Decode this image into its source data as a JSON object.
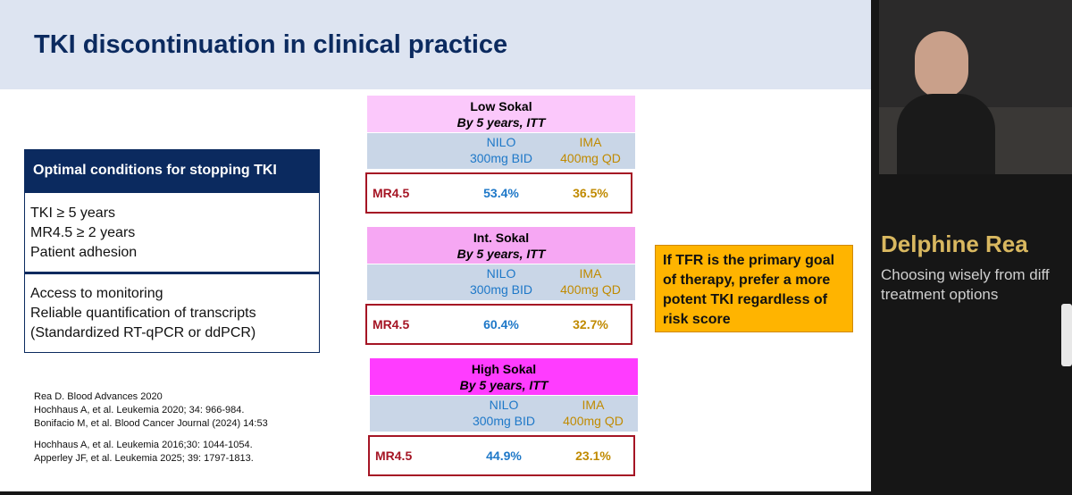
{
  "slide": {
    "title": "TKI discontinuation in clinical practice",
    "conditions": {
      "header": "Optimal conditions for stopping TKI",
      "groups": [
        [
          "TKI ≥ 5 years",
          "MR4.5 ≥ 2 years",
          "Patient adhesion"
        ],
        [
          "Access to monitoring",
          "Reliable quantification of transcripts",
          "(Standardized RT-qPCR or ddPCR)"
        ]
      ]
    },
    "tables": [
      {
        "title": "Low Sokal",
        "subtitle": "By 5 years, ITT",
        "columns": [
          [
            "NILO",
            "300mg BID"
          ],
          [
            "IMA",
            "400mg QD"
          ]
        ],
        "row_label": "MR4.5",
        "values": [
          "53.4%",
          "36.5%"
        ]
      },
      {
        "title": "Int. Sokal",
        "subtitle": "By 5 years, ITT",
        "columns": [
          [
            "NILO",
            "300mg BID"
          ],
          [
            "IMA",
            "400mg QD"
          ]
        ],
        "row_label": "MR4.5",
        "values": [
          "60.4%",
          "32.7%"
        ]
      },
      {
        "title": "High Sokal",
        "subtitle": "By 5 years, ITT",
        "columns": [
          [
            "NILO",
            "300mg BID"
          ],
          [
            "IMA",
            "400mg QD"
          ]
        ],
        "row_label": "MR4.5",
        "values": [
          "44.9%",
          "23.1%"
        ]
      }
    ],
    "callout": "If TFR is the primary goal of therapy, prefer a more potent TKI regardless of risk score",
    "references": [
      [
        "Rea D. Blood Advances 2020",
        "Hochhaus A, et al. Leukemia 2020; 34: 966-984.",
        "Bonifacio M, et al. Blood Cancer Journal (2024) 14:53"
      ],
      [
        "Hochhaus A, et al. Leukemia 2016;30: 1044-1054.",
        "Apperley JF, et al. Leukemia 2025;  39: 1797-1813."
      ]
    ]
  },
  "speaker": {
    "name": "Delphine Rea",
    "subtitle": [
      "Choosing wisely from diff",
      "treatment options"
    ]
  }
}
